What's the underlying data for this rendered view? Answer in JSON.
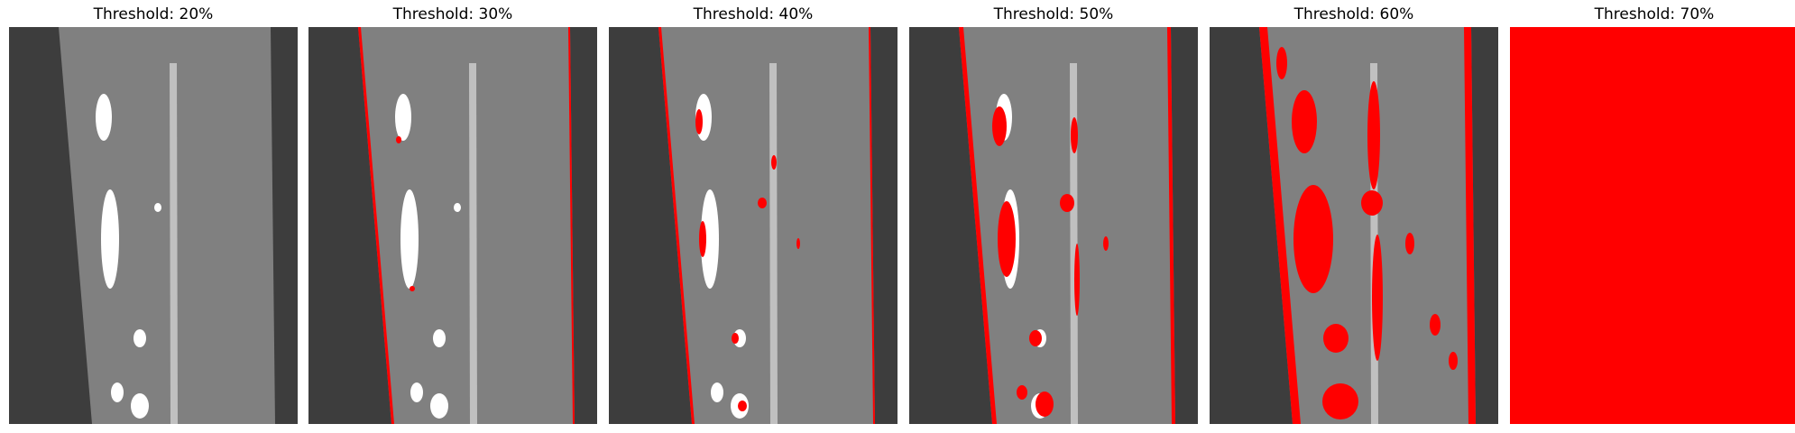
{
  "panels": [
    {
      "title": "Threshold: 20%",
      "threshold": 20
    },
    {
      "title": "Threshold: 30%",
      "threshold": 30
    },
    {
      "title": "Threshold: 40%",
      "threshold": 40
    },
    {
      "title": "Threshold: 50%",
      "threshold": 50
    },
    {
      "title": "Threshold: 60%",
      "threshold": 60
    },
    {
      "title": "Threshold: 70%",
      "threshold": 70
    }
  ],
  "colors": {
    "background": "#3d3d3d",
    "band_light": "#a6a6a6",
    "band_mid": "#808080",
    "stripe": "#c0c0c0",
    "blob": "#ffffff",
    "highlight": "#ff0000"
  }
}
